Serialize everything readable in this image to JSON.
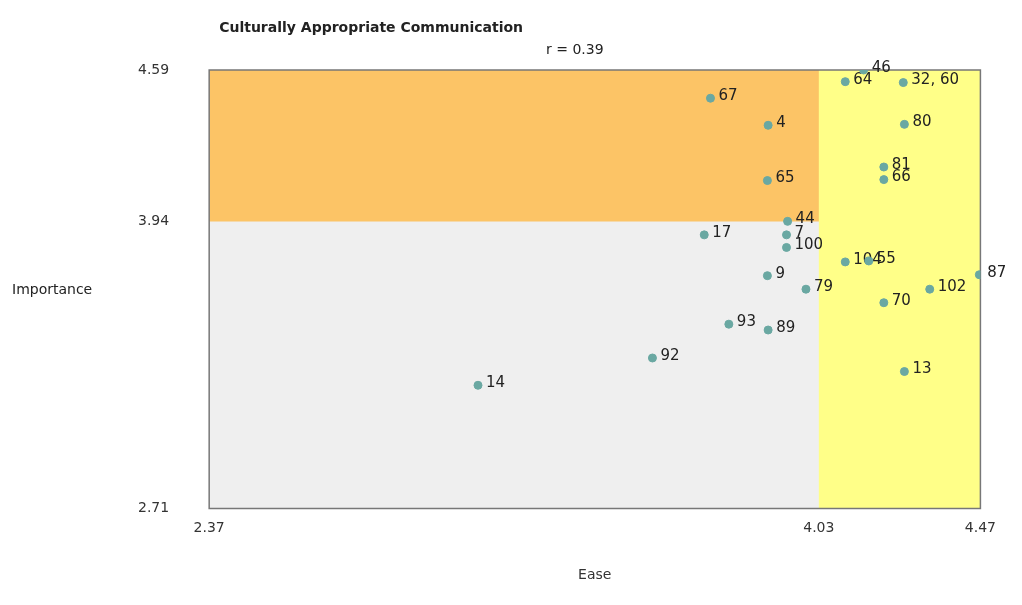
{
  "chart_data": {
    "type": "scatter",
    "title": "Culturally Appropriate Communication",
    "subtitle": "r = 0.39",
    "xlabel": "Ease",
    "ylabel": "Importance",
    "xlim": [
      2.37,
      4.47
    ],
    "ylim": [
      2.71,
      4.59
    ],
    "xticks": [
      2.37,
      4.03,
      4.47
    ],
    "yticks": [
      2.71,
      3.94,
      4.59
    ],
    "grid": false,
    "legend": false,
    "marker": "circle",
    "bands": [
      {
        "axis": "y",
        "from": 3.94,
        "to": 4.59,
        "color": "#fcc466"
      },
      {
        "axis": "x",
        "from": 4.03,
        "to": 4.47,
        "color": "#ffff88"
      }
    ],
    "series": [
      {
        "color": "#6aa8a2",
        "x": [
          3.735,
          3.892,
          3.89,
          4.152,
          4.102,
          4.26,
          4.263,
          4.207,
          4.207,
          3.945,
          3.942,
          3.718,
          3.942,
          4.102,
          4.166,
          3.89,
          3.995,
          4.467,
          4.332,
          4.207,
          3.785,
          3.892,
          3.577,
          3.102,
          4.263
        ],
        "values": [
          4.469,
          4.353,
          4.116,
          4.59,
          4.54,
          4.536,
          4.357,
          4.174,
          4.12,
          3.941,
          3.883,
          3.883,
          3.829,
          3.767,
          3.771,
          3.708,
          3.65,
          3.712,
          3.65,
          3.592,
          3.5,
          3.475,
          3.355,
          3.238,
          3.297
        ]
      }
    ],
    "annotations": [
      {
        "text": "67",
        "x": 3.735,
        "y": 4.469
      },
      {
        "text": "4",
        "x": 3.892,
        "y": 4.353
      },
      {
        "text": "65",
        "x": 3.89,
        "y": 4.116
      },
      {
        "text": "46",
        "x": 4.152,
        "y": 4.59
      },
      {
        "text": "64",
        "x": 4.102,
        "y": 4.54
      },
      {
        "text": "32, 60",
        "x": 4.26,
        "y": 4.536
      },
      {
        "text": "80",
        "x": 4.263,
        "y": 4.357
      },
      {
        "text": "81",
        "x": 4.207,
        "y": 4.174
      },
      {
        "text": "66",
        "x": 4.207,
        "y": 4.12
      },
      {
        "text": "44",
        "x": 3.945,
        "y": 3.941
      },
      {
        "text": "7",
        "x": 3.942,
        "y": 3.883
      },
      {
        "text": "17",
        "x": 3.718,
        "y": 3.883
      },
      {
        "text": "100",
        "x": 3.942,
        "y": 3.829
      },
      {
        "text": "104",
        "x": 4.102,
        "y": 3.767
      },
      {
        "text": "55",
        "x": 4.166,
        "y": 3.771
      },
      {
        "text": "9",
        "x": 3.89,
        "y": 3.708
      },
      {
        "text": "79",
        "x": 3.995,
        "y": 3.65
      },
      {
        "text": "87",
        "x": 4.467,
        "y": 3.712
      },
      {
        "text": "102",
        "x": 4.332,
        "y": 3.65
      },
      {
        "text": "70",
        "x": 4.207,
        "y": 3.592
      },
      {
        "text": "93",
        "x": 3.785,
        "y": 3.5
      },
      {
        "text": "89",
        "x": 3.892,
        "y": 3.475
      },
      {
        "text": "92",
        "x": 3.577,
        "y": 3.355
      },
      {
        "text": "14",
        "x": 3.102,
        "y": 3.238
      },
      {
        "text": "13",
        "x": 4.263,
        "y": 3.297
      }
    ]
  }
}
